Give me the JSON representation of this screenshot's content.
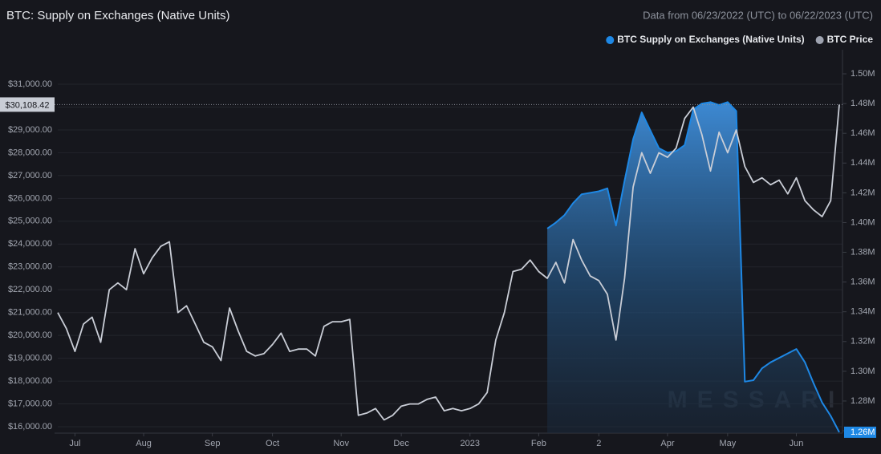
{
  "chart_data": {
    "type": "line",
    "title": "BTC: Supply on Exchanges (Native Units)",
    "subtitle": "Data from 06/23/2022 (UTC) to 06/22/2023 (UTC)",
    "watermark": "MESSARI",
    "legend": "top-right",
    "categories": [
      null,
      null,
      "Jul",
      null,
      null,
      null,
      null,
      null,
      null,
      null,
      "Aug",
      null,
      null,
      null,
      null,
      null,
      null,
      null,
      "Sep",
      null,
      null,
      null,
      null,
      null,
      null,
      "Oct",
      null,
      null,
      null,
      null,
      null,
      null,
      null,
      "Nov",
      null,
      null,
      null,
      null,
      null,
      null,
      "Dec",
      null,
      null,
      null,
      null,
      null,
      null,
      null,
      "2023",
      null,
      null,
      null,
      null,
      null,
      null,
      null,
      "Feb",
      null,
      null,
      null,
      null,
      null,
      null,
      "2",
      null,
      null,
      null,
      null,
      null,
      null,
      null,
      "Apr",
      null,
      null,
      null,
      null,
      null,
      null,
      "May",
      null,
      null,
      null,
      null,
      null,
      null,
      null,
      "Jun",
      null,
      null,
      null,
      null,
      null
    ],
    "series": [
      {
        "name": "BTC Supply on Exchanges (Native Units)",
        "color": "#1e88e5",
        "axis": "y2",
        "area": true,
        "values": [
          null,
          null,
          null,
          null,
          null,
          null,
          null,
          null,
          null,
          null,
          null,
          null,
          null,
          null,
          null,
          null,
          null,
          null,
          null,
          null,
          null,
          null,
          null,
          null,
          null,
          null,
          null,
          null,
          null,
          null,
          null,
          null,
          null,
          null,
          null,
          null,
          null,
          null,
          null,
          null,
          null,
          null,
          null,
          null,
          null,
          null,
          null,
          null,
          null,
          null,
          null,
          null,
          null,
          null,
          null,
          null,
          null,
          1.396,
          1.4,
          1.405,
          1.413,
          1.419,
          1.42,
          1.421,
          1.423,
          1.398,
          1.428,
          1.456,
          1.474,
          1.462,
          1.45,
          1.447,
          1.448,
          1.452,
          1.476,
          1.48,
          1.481,
          1.479,
          1.481,
          1.475,
          1.293,
          1.294,
          1.302,
          1.306,
          1.309,
          1.312,
          1.315,
          1.306,
          1.292,
          1.279,
          1.27,
          1.259
        ]
      },
      {
        "name": "BTC Price",
        "color": "#c9cdd6",
        "legend_color": "#9ea3b0",
        "values": [
          21000,
          20300,
          19300,
          20500,
          20800,
          19700,
          22000,
          22300,
          22000,
          23800,
          22700,
          23400,
          23900,
          24100,
          21000,
          21300,
          20500,
          19700,
          19500,
          18900,
          21200,
          20200,
          19300,
          19100,
          19200,
          19600,
          20100,
          19300,
          19400,
          19400,
          19100,
          20400,
          20600,
          20600,
          20700,
          16500,
          16600,
          16800,
          16300,
          16500,
          16900,
          17000,
          17000,
          17200,
          17300,
          16700,
          16800,
          16700,
          16800,
          17000,
          17500,
          19800,
          21000,
          22800,
          22900,
          23300,
          22800,
          22500,
          23200,
          22300,
          24200,
          23300,
          22600,
          22400,
          21800,
          19800,
          22500,
          26500,
          28000,
          27100,
          28000,
          27800,
          28200,
          29500,
          30000,
          28800,
          27200,
          28900,
          28000,
          29000,
          27400,
          26700,
          26900,
          26600,
          26800,
          26200,
          26900,
          25900,
          25500,
          25200,
          25900,
          30108.42
        ],
        "value_labels": [
          null,
          null,
          null,
          null,
          null,
          null,
          null,
          null,
          null,
          null,
          null,
          null,
          null,
          null,
          null,
          null,
          null,
          null,
          null,
          null,
          null,
          null,
          null,
          null,
          null,
          null,
          null,
          null,
          null,
          null,
          null,
          null,
          null,
          null,
          null,
          null,
          null,
          null,
          null,
          null,
          null,
          null,
          null,
          null,
          null,
          null,
          null,
          null,
          null,
          null,
          null,
          null,
          null,
          null,
          null,
          null,
          null,
          null,
          null,
          null,
          null,
          null,
          null,
          null,
          null,
          null,
          null,
          null,
          null,
          null,
          null,
          null,
          null,
          null,
          null,
          null,
          null,
          null,
          null,
          null,
          null,
          null,
          null,
          null,
          null,
          null,
          null,
          null,
          null,
          null,
          null,
          "$30,108.42"
        ]
      }
    ],
    "ylim": [
      15720,
      32160
    ],
    "yticks": [
      {
        "value": 16000,
        "label": "$16,000.00"
      },
      {
        "value": 17000,
        "label": "$17,000.00"
      },
      {
        "value": 18000,
        "label": "$18,000.00"
      },
      {
        "value": 19000,
        "label": "$19,000.00"
      },
      {
        "value": 20000,
        "label": "$20,000.00"
      },
      {
        "value": 21000,
        "label": "$21,000.00"
      },
      {
        "value": 22000,
        "label": "$22,000.00"
      },
      {
        "value": 23000,
        "label": "$23,000.00"
      },
      {
        "value": 24000,
        "label": "$24,000.00"
      },
      {
        "value": 25000,
        "label": "$25,000.00"
      },
      {
        "value": 26000,
        "label": "$26,000.00"
      },
      {
        "value": 27000,
        "label": "$27,000.00"
      },
      {
        "value": 28000,
        "label": "$28,000.00"
      },
      {
        "value": 29000,
        "label": "$29,000.00"
      },
      {
        "value": 30000,
        "label": "$30,000.00"
      },
      {
        "value": 31000,
        "label": "$31,000.00"
      }
    ],
    "y2lim": [
      1.2584,
      1.5108
    ],
    "y2ticks": [
      {
        "value": 1.26,
        "label": "1.26M"
      },
      {
        "value": 1.28,
        "label": "1.28M"
      },
      {
        "value": 1.3,
        "label": "1.30M"
      },
      {
        "value": 1.32,
        "label": "1.32M"
      },
      {
        "value": 1.34,
        "label": "1.34M"
      },
      {
        "value": 1.36,
        "label": "1.36M"
      },
      {
        "value": 1.38,
        "label": "1.38M"
      },
      {
        "value": 1.4,
        "label": "1.40M"
      },
      {
        "value": 1.42,
        "label": "1.42M"
      },
      {
        "value": 1.44,
        "label": "1.44M"
      },
      {
        "value": 1.46,
        "label": "1.46M"
      },
      {
        "value": 1.48,
        "label": "1.48M"
      },
      {
        "value": 1.5,
        "label": "1.50M"
      }
    ],
    "grid": true
  }
}
